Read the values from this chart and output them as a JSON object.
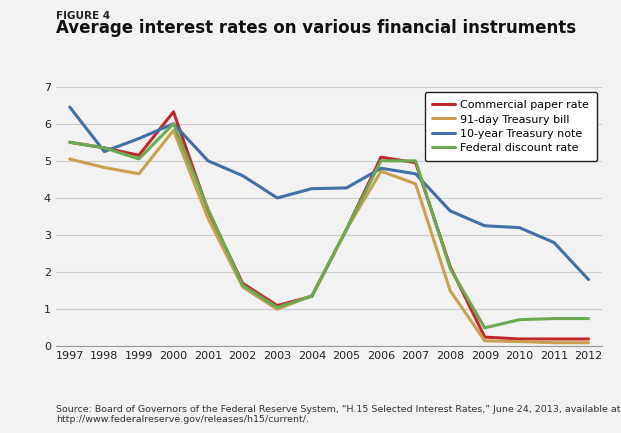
{
  "figure_label": "FIGURE 4",
  "title": "Average interest rates on various financial instruments",
  "source": "Source: Board of Governors of the Federal Reserve System, “H.15 Selected Interest Rates,” June 24, 2013, available at\nhttp://www.federalreserve.gov/releases/h15/current/.",
  "years": [
    1997,
    1998,
    1999,
    2000,
    2001,
    2002,
    2003,
    2004,
    2005,
    2006,
    2007,
    2008,
    2009,
    2010,
    2011,
    2012
  ],
  "commercial_paper": [
    5.5,
    5.35,
    5.15,
    6.32,
    3.65,
    1.7,
    1.1,
    1.35,
    3.15,
    5.1,
    4.95,
    2.15,
    0.25,
    0.2,
    0.2,
    0.2
  ],
  "treasury_bill_91": [
    5.05,
    4.82,
    4.65,
    5.82,
    3.45,
    1.6,
    1.0,
    1.37,
    3.15,
    4.72,
    4.38,
    1.5,
    0.15,
    0.13,
    0.1,
    0.1
  ],
  "treasury_note_10yr": [
    6.45,
    5.25,
    5.6,
    6.0,
    5.0,
    4.6,
    4.0,
    4.25,
    4.27,
    4.8,
    4.65,
    3.65,
    3.25,
    3.2,
    2.8,
    1.8
  ],
  "fed_discount": [
    5.5,
    5.35,
    5.05,
    6.0,
    3.7,
    1.65,
    1.05,
    1.35,
    3.15,
    5.0,
    5.0,
    2.1,
    0.5,
    0.72,
    0.75,
    0.75
  ],
  "colors": {
    "commercial_paper": "#c0282c",
    "treasury_bill_91": "#c8a050",
    "treasury_note_10yr": "#4070a8",
    "fed_discount": "#6aaa50"
  },
  "ylim": [
    0,
    7
  ],
  "yticks": [
    0,
    1,
    2,
    3,
    4,
    5,
    6,
    7
  ],
  "bg_color": "#f0f0f0",
  "plot_bg": "#f0f0f0",
  "line_width": 2.2
}
